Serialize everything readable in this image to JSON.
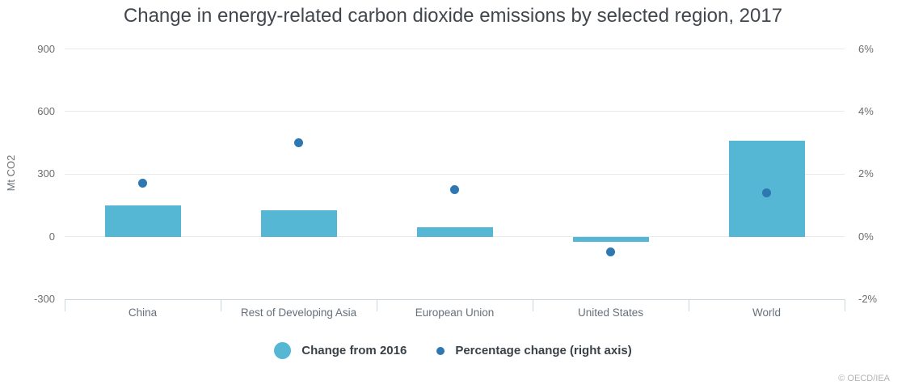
{
  "title": "Change in energy-related carbon dioxide emissions by selected region, 2017",
  "chart_data": {
    "type": "bar",
    "categories": [
      "China",
      "Rest of Developing Asia",
      "European Union",
      "United States",
      "World"
    ],
    "series": [
      {
        "name": "Change from 2016",
        "type": "bar",
        "axis": "left",
        "values": [
          150,
          125,
          46,
          -25,
          460
        ],
        "color": "#55b7d3"
      },
      {
        "name": "Percentage change (right axis)",
        "type": "scatter",
        "axis": "right",
        "values": [
          1.7,
          3.0,
          1.5,
          -0.5,
          1.4
        ],
        "color": "#2e77b1"
      }
    ],
    "left_axis": {
      "label": "Mt CO2",
      "ticks": [
        900,
        600,
        300,
        0,
        -300
      ],
      "range": [
        -300,
        900
      ]
    },
    "right_axis": {
      "ticks": [
        "6%",
        "4%",
        "2%",
        "0%",
        "-2%"
      ],
      "tick_values": [
        6,
        4,
        2,
        0,
        -2
      ],
      "range": [
        -2,
        6
      ]
    },
    "grid": true,
    "legend_position": "bottom"
  },
  "footer": {
    "credit": "© OECD/IEA"
  },
  "colors": {
    "bar": "#55b7d3",
    "dot": "#2e77b1",
    "grid": "#eaeaea",
    "axis_line": "#ccd6dc",
    "title_text": "#41474d",
    "tick_text": "#6d6d6d",
    "category_text": "#66707a",
    "legend_text": "#3a4147",
    "credit_text": "#b3b3b3"
  }
}
